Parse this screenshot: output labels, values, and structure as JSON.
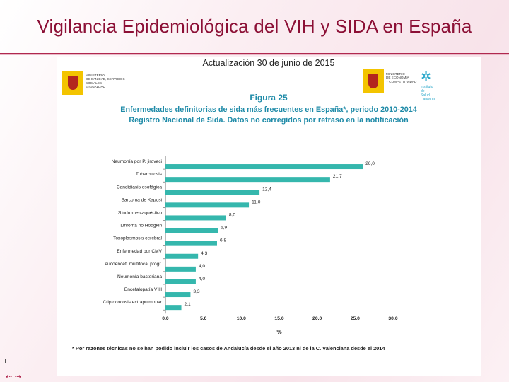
{
  "slide": {
    "title": "Vigilancia Epidemiológica del VIH y SIDA en España",
    "update": "Actualización 30 de junio de 2015"
  },
  "logos": {
    "left_text": "MINISTERIO\nDE SANIDAD, SERVICIOS SOCIALES\nE IGUALDAD",
    "right_text": "MINISTERIO\nDE ECONOMÍA\nY COMPETITIVIDAD",
    "isc_text": "Instituto\nde\nSalud\nCarlos III"
  },
  "figure": {
    "label": "Figura 25",
    "title_line1": "Enfermedades definitorias de sida más frecuentes en España*, periodo 2010-2014",
    "title_line2": "Registro Nacional de Sida. Datos no corregidos por retraso en la notificación"
  },
  "footnote": "* Por razones técnicas no se han podido incluir los casos de Andalucía desde el año 2013 ni de la C. Valenciana desde el 2014",
  "colors": {
    "bar": "#35b7ad",
    "title": "#8c1036",
    "figure_title": "#1f8ba8"
  },
  "chart_data": {
    "type": "bar",
    "orientation": "horizontal",
    "title": "Enfermedades definitorias de sida más frecuentes en España*, periodo 2010-2014",
    "xlabel": "%",
    "ylabel": "",
    "xlim": [
      0,
      30
    ],
    "x_ticks": [
      0,
      5,
      10,
      15,
      20,
      25,
      30
    ],
    "x_tick_labels": [
      "0,0",
      "5,0",
      "10,0",
      "15,0",
      "20,0",
      "25,0",
      "30,0"
    ],
    "grid": false,
    "categories": [
      "Neumonía por P. jiroveci",
      "Tuberculosis",
      "Candidiasis esofágica",
      "Sarcoma de Kaposi",
      "Síndrome caquéctico",
      "Linfoma no Hodgkin",
      "Toxoplasmosis cerebral",
      "Enfermedad por CMV",
      "Leucoencef. multifocal progr.",
      "Neumonía bacteriana",
      "Encefalopatía VIH",
      "Criptococosis extrapulmonar"
    ],
    "values": [
      26.0,
      21.7,
      12.4,
      11.0,
      8.0,
      6.9,
      6.8,
      4.3,
      4.0,
      4.0,
      3.3,
      2.1
    ],
    "value_labels": [
      "26,0",
      "21,7",
      "12,4",
      "11,0",
      "8,0",
      "6,9",
      "6,8",
      "4,3",
      "4,0",
      "4,0",
      "3,3",
      "2,1"
    ]
  }
}
